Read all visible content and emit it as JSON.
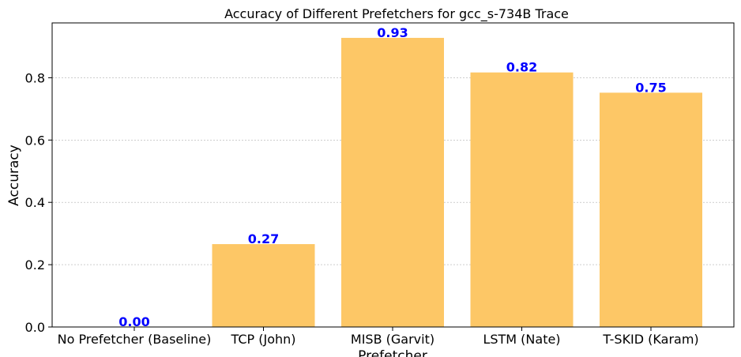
{
  "colors": {
    "bar": "#fdc766",
    "data_label": "#0000ff",
    "grid": "#b0b0b0"
  },
  "chart_data": {
    "type": "bar",
    "title": "Accuracy of Different Prefetchers for gcc_s-734B Trace",
    "xlabel": "Prefetcher",
    "ylabel": "Accuracy",
    "categories": [
      "No Prefetcher (Baseline)",
      "TCP (John)",
      "MISB (Garvit)",
      "LSTM (Nate)",
      "T-SKID (Karam)"
    ],
    "values": [
      0.0,
      0.266,
      0.928,
      0.817,
      0.752
    ],
    "value_labels": [
      "0.00",
      "0.27",
      "0.93",
      "0.82",
      "0.75"
    ],
    "ylim": [
      0,
      0.976
    ],
    "yticks": [
      0.0,
      0.2,
      0.4,
      0.6,
      0.8
    ],
    "ytick_labels": [
      "0.0",
      "0.2",
      "0.4",
      "0.6",
      "0.8"
    ],
    "grid": "y-dashed"
  }
}
